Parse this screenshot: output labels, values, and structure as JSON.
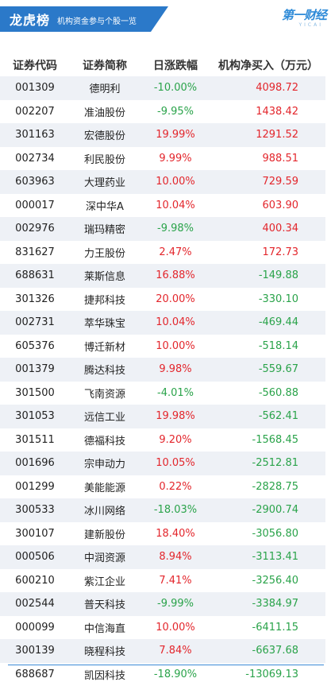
{
  "header": {
    "title": "龙虎榜",
    "subtitle": "机构资金参与个股一览",
    "logo": "第一财经",
    "logo_sub": "YICAI"
  },
  "table": {
    "columns": [
      "证券代码",
      "证券简称",
      "日涨跌幅",
      "机构净买入（万元）"
    ],
    "rows": [
      {
        "code": "001309",
        "name": "德明利",
        "change": "-10.00%",
        "net": "4098.72"
      },
      {
        "code": "002207",
        "name": "准油股份",
        "change": "-9.95%",
        "net": "1438.42"
      },
      {
        "code": "301163",
        "name": "宏德股份",
        "change": "19.99%",
        "net": "1291.52"
      },
      {
        "code": "002734",
        "name": "利民股份",
        "change": "9.99%",
        "net": "988.51"
      },
      {
        "code": "603963",
        "name": "大理药业",
        "change": "10.00%",
        "net": "729.59"
      },
      {
        "code": "000017",
        "name": "深中华A",
        "change": "10.04%",
        "net": "603.90"
      },
      {
        "code": "002976",
        "name": "瑞玛精密",
        "change": "-9.98%",
        "net": "400.34"
      },
      {
        "code": "831627",
        "name": "力王股份",
        "change": "2.47%",
        "net": "172.73"
      },
      {
        "code": "688631",
        "name": "莱斯信息",
        "change": "16.88%",
        "net": "-149.88"
      },
      {
        "code": "301326",
        "name": "捷邦科技",
        "change": "20.00%",
        "net": "-330.10"
      },
      {
        "code": "002731",
        "name": "萃华珠宝",
        "change": "10.04%",
        "net": "-469.44"
      },
      {
        "code": "605376",
        "name": "博迁新材",
        "change": "10.00%",
        "net": "-518.14"
      },
      {
        "code": "001379",
        "name": "腾达科技",
        "change": "9.98%",
        "net": "-559.67"
      },
      {
        "code": "301500",
        "name": "飞南资源",
        "change": "-4.01%",
        "net": "-560.88"
      },
      {
        "code": "301053",
        "name": "远信工业",
        "change": "19.98%",
        "net": "-562.41"
      },
      {
        "code": "301511",
        "name": "德福科技",
        "change": "9.20%",
        "net": "-1568.45"
      },
      {
        "code": "001696",
        "name": "宗申动力",
        "change": "10.05%",
        "net": "-2512.81"
      },
      {
        "code": "001299",
        "name": "美能能源",
        "change": "0.22%",
        "net": "-2828.75"
      },
      {
        "code": "300533",
        "name": "冰川网络",
        "change": "-18.03%",
        "net": "-2900.74"
      },
      {
        "code": "300107",
        "name": "建新股份",
        "change": "18.40%",
        "net": "-3056.80"
      },
      {
        "code": "000506",
        "name": "中润资源",
        "change": "8.94%",
        "net": "-3113.41"
      },
      {
        "code": "600210",
        "name": "紫江企业",
        "change": "7.41%",
        "net": "-3256.40"
      },
      {
        "code": "002544",
        "name": "普天科技",
        "change": "-9.99%",
        "net": "-3384.97"
      },
      {
        "code": "000099",
        "name": "中信海直",
        "change": "10.00%",
        "net": "-6411.15"
      },
      {
        "code": "300139",
        "name": "晓程科技",
        "change": "7.84%",
        "net": "-6637.68"
      },
      {
        "code": "688687",
        "name": "凯因科技",
        "change": "-18.90%",
        "net": "-13069.13"
      }
    ]
  },
  "colors": {
    "header_blue": "#2b79c9",
    "up_red": "#e3262c",
    "down_green": "#2aa34a",
    "stripe": "#eef1f6"
  }
}
